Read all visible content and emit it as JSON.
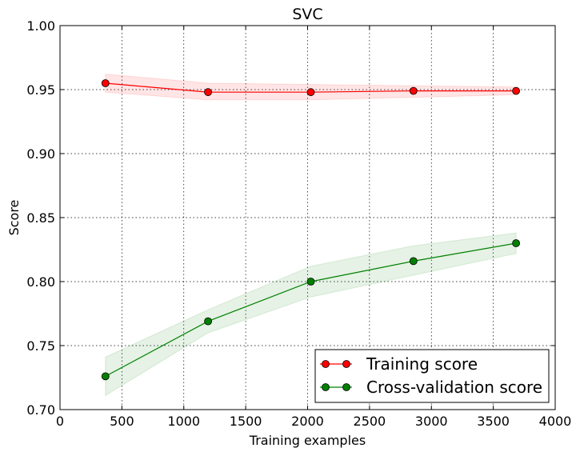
{
  "chart_data": {
    "type": "line",
    "title": "SVC",
    "xlabel": "Training examples",
    "ylabel": "Score",
    "xlim": [
      0,
      4000
    ],
    "ylim": [
      0.7,
      1.0
    ],
    "xticks": [
      0,
      500,
      1000,
      1500,
      2000,
      2500,
      3000,
      3500,
      4000
    ],
    "yticks": [
      0.7,
      0.75,
      0.8,
      0.85,
      0.9,
      0.95,
      1.0
    ],
    "xtick_labels": [
      "0",
      "500",
      "1000",
      "1500",
      "2000",
      "2500",
      "3000",
      "3500",
      "4000"
    ],
    "ytick_labels": [
      "0.70",
      "0.75",
      "0.80",
      "0.85",
      "0.90",
      "0.95",
      "1.00"
    ],
    "grid": true,
    "legend_position": "lower-right",
    "x": [
      367,
      1196,
      2026,
      2855,
      3684
    ],
    "series": [
      {
        "name": "Training score",
        "color": "#ff0000",
        "values": [
          0.955,
          0.948,
          0.948,
          0.949,
          0.949
        ],
        "lower": [
          0.948,
          0.942,
          0.942,
          0.944,
          0.946
        ],
        "upper": [
          0.962,
          0.955,
          0.954,
          0.953,
          0.952
        ]
      },
      {
        "name": "Cross-validation score",
        "color": "#008000",
        "values": [
          0.726,
          0.769,
          0.8,
          0.816,
          0.83
        ],
        "lower": [
          0.711,
          0.76,
          0.788,
          0.805,
          0.822
        ],
        "upper": [
          0.741,
          0.778,
          0.812,
          0.828,
          0.838
        ]
      }
    ]
  }
}
